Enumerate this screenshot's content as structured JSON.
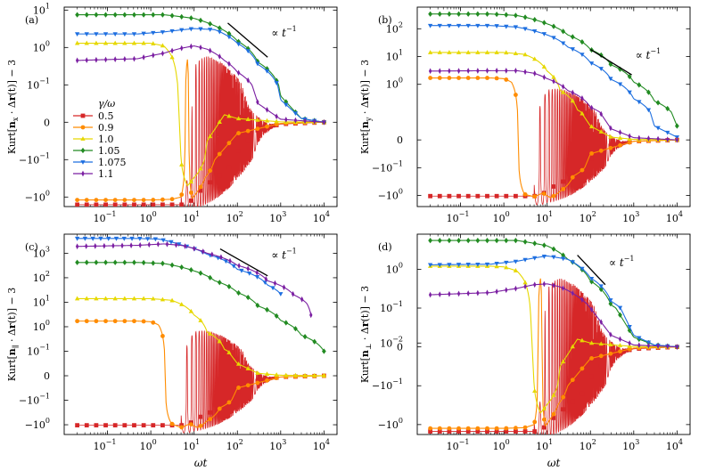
{
  "legend": {
    "title": "γ/ω",
    "entries": [
      {
        "label": "0.5",
        "color": "#d62728",
        "marker": "square"
      },
      {
        "label": "0.9",
        "color": "#ff8c00",
        "marker": "circle"
      },
      {
        "label": "1.0",
        "color": "#e6d800",
        "marker": "triangle-up"
      },
      {
        "label": "1.05",
        "color": "#228b22",
        "marker": "diamond"
      },
      {
        "label": "1.075",
        "color": "#1e6fe0",
        "marker": "triangle-down"
      },
      {
        "label": "1.1",
        "color": "#7b1fa2",
        "marker": "thin-diamond"
      }
    ]
  },
  "chart_data": [
    {
      "panel": "(a)",
      "type": "line",
      "xlabel": "",
      "ylabel": "Kurt[n_x · Δr(t)] − 3",
      "ylabel_parts": [
        "Kurt[",
        "n",
        "x",
        " · Δ",
        "r",
        "(t)] − 3"
      ],
      "xscale": "log",
      "yscale": "symlog",
      "xlim": [
        0.01,
        20000
      ],
      "ylim": [
        -1.8,
        12
      ],
      "xticks": [
        {
          "v": 0.1,
          "b": "10",
          "e": "−1"
        },
        {
          "v": 1,
          "b": "10",
          "e": "0"
        },
        {
          "v": 10,
          "b": "10",
          "e": "1"
        },
        {
          "v": 100,
          "b": "10",
          "e": "2"
        },
        {
          "v": 1000,
          "b": "10",
          "e": "3"
        },
        {
          "v": 10000,
          "b": "10",
          "e": "4"
        }
      ],
      "yticks": [
        {
          "v": 10,
          "b": "10",
          "e": "1"
        },
        {
          "v": 1,
          "b": "10",
          "e": "0"
        },
        {
          "v": 0.1,
          "b": "10",
          "e": "−1"
        },
        {
          "v": 0,
          "b": "0",
          "e": ""
        },
        {
          "v": -0.1,
          "b": "−10",
          "e": "−1"
        },
        {
          "v": -1,
          "b": "−10",
          "e": "0"
        }
      ],
      "annotation": {
        "text": "∝ t",
        "exp": "−1",
        "line_x": [
          60,
          500
        ],
        "line_y": [
          4.5,
          0.55
        ]
      },
      "series": [
        {
          "name": "0.5",
          "osc": true,
          "x": [
            0.02,
            1,
            4,
            6,
            8,
            10,
            20,
            40,
            100,
            300,
            1000,
            10000
          ],
          "y": [
            -1.6,
            -1.6,
            -1.6,
            -1.6,
            -1.4,
            -0.9,
            -0.45,
            -0.25,
            -0.08,
            -0.02,
            -0.005,
            0
          ]
        },
        {
          "name": "0.9",
          "x": [
            0.02,
            1,
            3,
            5,
            7,
            9,
            12,
            18,
            30,
            100,
            1000,
            10000
          ],
          "y": [
            -1.2,
            -1.2,
            -1.15,
            -1.0,
            0.5,
            -1.1,
            -0.7,
            -0.3,
            -0.1,
            -0.03,
            -0.003,
            0
          ]
        },
        {
          "name": "1.0",
          "x": [
            0.02,
            0.5,
            1,
            2,
            3,
            4,
            5,
            7,
            10,
            20,
            50,
            100,
            1000,
            10000
          ],
          "y": [
            1.3,
            1.3,
            1.3,
            1.1,
            0.6,
            0.15,
            -0.1,
            -0.5,
            -0.3,
            -0.05,
            0.02,
            0.01,
            0.001,
            0
          ]
        },
        {
          "name": "1.05",
          "x": [
            0.02,
            0.5,
            2,
            10,
            30,
            100,
            300,
            1000,
            3000,
            10000
          ],
          "y": [
            7.5,
            7.5,
            7.5,
            6.0,
            3.8,
            1.5,
            0.4,
            0.07,
            0.01,
            0
          ]
        },
        {
          "name": "1.075",
          "x": [
            0.02,
            0.5,
            2,
            10,
            30,
            100,
            300,
            1000,
            3000,
            10000
          ],
          "y": [
            2.3,
            2.3,
            2.6,
            3.2,
            3.0,
            1.3,
            0.35,
            0.06,
            0.01,
            0
          ]
        },
        {
          "name": "1.1",
          "x": [
            0.02,
            0.5,
            2,
            5,
            10,
            20,
            50,
            100,
            300,
            1000,
            10000
          ],
          "y": [
            0.45,
            0.5,
            0.7,
            0.95,
            1.1,
            0.9,
            0.45,
            0.22,
            0.05,
            0.008,
            0
          ]
        }
      ]
    },
    {
      "panel": "(b)",
      "type": "line",
      "xlabel": "",
      "ylabel": "Kurt[n_y · Δr(t)] − 3",
      "ylabel_parts": [
        "Kurt[",
        "n",
        "y",
        " · Δ",
        "r",
        "(t)] − 3"
      ],
      "xscale": "log",
      "yscale": "symlog",
      "xlim": [
        0.01,
        20000
      ],
      "ylim": [
        -2.5,
        600
      ],
      "xticks": [
        {
          "v": 0.1,
          "b": "10",
          "e": "−1"
        },
        {
          "v": 1,
          "b": "10",
          "e": "0"
        },
        {
          "v": 10,
          "b": "10",
          "e": "1"
        },
        {
          "v": 100,
          "b": "10",
          "e": "2"
        },
        {
          "v": 1000,
          "b": "10",
          "e": "3"
        },
        {
          "v": 10000,
          "b": "10",
          "e": "4"
        }
      ],
      "yticks": [
        {
          "v": 100,
          "b": "10",
          "e": "2"
        },
        {
          "v": 10,
          "b": "10",
          "e": "1"
        },
        {
          "v": 1,
          "b": "10",
          "e": "0"
        },
        {
          "v": 0,
          "b": "0",
          "e": ""
        },
        {
          "v": -0.1,
          "b": "−10",
          "e": "−1"
        },
        {
          "v": -1,
          "b": "−10",
          "e": "0"
        }
      ],
      "annotation": {
        "text": "∝ t",
        "exp": "−1",
        "line_x": [
          100,
          900
        ],
        "line_y": [
          18,
          2.2
        ]
      },
      "series": [
        {
          "name": "0.5",
          "osc": true,
          "x": [
            0.02,
            1,
            4,
            6,
            8,
            10,
            20,
            40,
            100,
            300,
            1000,
            10000
          ],
          "y": [
            -1.05,
            -1.05,
            -1.05,
            -1.05,
            -0.9,
            -0.6,
            -0.35,
            -0.2,
            -0.07,
            -0.02,
            -0.005,
            0
          ]
        },
        {
          "name": "0.9",
          "x": [
            0.02,
            0.5,
            1,
            1.5,
            2,
            3,
            5,
            8,
            12,
            20,
            40,
            100,
            1000,
            10000
          ],
          "y": [
            1.7,
            1.7,
            1.6,
            1.2,
            0.2,
            -0.9,
            -1.1,
            -0.8,
            -1.2,
            -0.7,
            -0.2,
            -0.05,
            -0.005,
            0
          ]
        },
        {
          "name": "1.0",
          "x": [
            0.02,
            1,
            3,
            6,
            10,
            20,
            50,
            100,
            300,
            1000,
            10000
          ],
          "y": [
            14,
            14,
            12,
            7,
            3,
            0.6,
            0.12,
            0.05,
            0.01,
            0.002,
            0
          ]
        },
        {
          "name": "1.05",
          "x": [
            0.02,
            0.5,
            2,
            10,
            30,
            100,
            300,
            1000,
            3000,
            10000
          ],
          "y": [
            340,
            340,
            300,
            150,
            60,
            18,
            5,
            1.2,
            0.25,
            0.05
          ]
        },
        {
          "name": "1.075",
          "x": [
            0.02,
            0.5,
            2,
            10,
            30,
            100,
            300,
            1000,
            3000,
            10000
          ],
          "y": [
            130,
            130,
            115,
            60,
            22,
            6,
            1.5,
            0.3,
            0.05,
            0.01
          ]
        },
        {
          "name": "1.1",
          "x": [
            0.02,
            0.5,
            2,
            5,
            10,
            30,
            100,
            300,
            1000,
            10000
          ],
          "y": [
            3,
            3.1,
            3.1,
            2.5,
            1.6,
            0.6,
            0.15,
            0.04,
            0.008,
            0
          ]
        }
      ]
    },
    {
      "panel": "(c)",
      "type": "line",
      "xlabel": "ωt",
      "ylabel": "Kurt[n_∥ · Δr(t)] − 3",
      "ylabel_parts": [
        "Kurt[",
        "n",
        "∥",
        " · Δ",
        "r",
        "(t)] − 3"
      ],
      "xscale": "log",
      "yscale": "symlog",
      "xlim": [
        0.01,
        20000
      ],
      "ylim": [
        -2.5,
        6000
      ],
      "xticks": [
        {
          "v": 0.1,
          "b": "10",
          "e": "−1"
        },
        {
          "v": 1,
          "b": "10",
          "e": "0"
        },
        {
          "v": 10,
          "b": "10",
          "e": "1"
        },
        {
          "v": 100,
          "b": "10",
          "e": "2"
        },
        {
          "v": 1000,
          "b": "10",
          "e": "3"
        },
        {
          "v": 10000,
          "b": "10",
          "e": "4"
        }
      ],
      "yticks": [
        {
          "v": 1000,
          "b": "10",
          "e": "3"
        },
        {
          "v": 100,
          "b": "10",
          "e": "2"
        },
        {
          "v": 10,
          "b": "10",
          "e": "1"
        },
        {
          "v": 1,
          "b": "10",
          "e": "0"
        },
        {
          "v": 0.1,
          "b": "10",
          "e": "−1"
        },
        {
          "v": 0,
          "b": "0",
          "e": ""
        },
        {
          "v": -0.1,
          "b": "−10",
          "e": "−1"
        },
        {
          "v": -1,
          "b": "−10",
          "e": "0"
        }
      ],
      "annotation": {
        "text": "∝ t",
        "exp": "−1",
        "line_x": [
          40,
          500
        ],
        "line_y": [
          1500,
          120
        ]
      },
      "series": [
        {
          "name": "0.5",
          "osc": true,
          "x": [
            0.02,
            1,
            4,
            6,
            8,
            10,
            20,
            40,
            100,
            300,
            1000,
            10000
          ],
          "y": [
            -1.05,
            -1.05,
            -1.05,
            -1.05,
            -0.9,
            -0.6,
            -0.35,
            -0.2,
            -0.07,
            -0.02,
            -0.005,
            0
          ]
        },
        {
          "name": "0.9",
          "x": [
            0.02,
            0.5,
            1,
            1.5,
            2,
            3,
            5,
            8,
            12,
            20,
            40,
            100,
            1000,
            10000
          ],
          "y": [
            1.7,
            1.7,
            1.6,
            1.2,
            0.2,
            -0.9,
            -1.3,
            -0.9,
            -1.3,
            -0.7,
            -0.2,
            -0.05,
            -0.005,
            0
          ]
        },
        {
          "name": "1.0",
          "x": [
            0.02,
            1,
            3,
            6,
            10,
            20,
            50,
            100,
            300,
            1000,
            10000
          ],
          "y": [
            14,
            14,
            12,
            7,
            3,
            0.6,
            0.12,
            0.05,
            0.01,
            0.002,
            0
          ]
        },
        {
          "name": "1.05",
          "x": [
            0.02,
            0.5,
            2,
            10,
            30,
            100,
            300,
            1000,
            3000,
            10000
          ],
          "y": [
            420,
            420,
            380,
            190,
            75,
            25,
            7,
            1.8,
            0.45,
            0.1
          ]
        },
        {
          "name": "1.075",
          "x": [
            0.02,
            0.5,
            1.5,
            5,
            20,
            100,
            500,
            1000
          ],
          "y": [
            4000,
            4000,
            3800,
            2200,
            900,
            220,
            50,
            22
          ]
        },
        {
          "name": "1.1",
          "x": [
            0.02,
            0.5,
            2,
            5,
            20,
            100,
            500,
            2000,
            4000,
            5000
          ],
          "y": [
            1900,
            2100,
            2400,
            2100,
            1000,
            320,
            75,
            20,
            9,
            3
          ]
        }
      ]
    },
    {
      "panel": "(d)",
      "type": "line",
      "xlabel": "ωt",
      "ylabel": "Kurt[n_⊥ · Δr(t)] − 3",
      "ylabel_parts": [
        "Kurt[",
        "n",
        "⊥",
        " · Δ",
        "r",
        "(t)] − 3"
      ],
      "xscale": "log",
      "yscale": "symlog",
      "xlim": [
        0.01,
        20000
      ],
      "ylim": [
        -1.8,
        8
      ],
      "xticks": [
        {
          "v": 0.1,
          "b": "10",
          "e": "−1"
        },
        {
          "v": 1,
          "b": "10",
          "e": "0"
        },
        {
          "v": 10,
          "b": "10",
          "e": "1"
        },
        {
          "v": 100,
          "b": "10",
          "e": "2"
        },
        {
          "v": 1000,
          "b": "10",
          "e": "3"
        },
        {
          "v": 10000,
          "b": "10",
          "e": "4"
        }
      ],
      "yticks": [
        {
          "v": 1,
          "b": "10",
          "e": "0"
        },
        {
          "v": 0.1,
          "b": "10",
          "e": "−1"
        },
        {
          "v": 0.01,
          "b": "10",
          "e": "−2"
        },
        {
          "v": 0,
          "b": "0",
          "e": ""
        },
        {
          "v": -0.1,
          "b": "−10",
          "e": "−1"
        },
        {
          "v": -1,
          "b": "−10",
          "e": "0"
        }
      ],
      "annotation": {
        "text": "∝ t",
        "exp": "−1",
        "line_x": [
          50,
          220
        ],
        "line_y": [
          2.3,
          0.4
        ]
      },
      "series": [
        {
          "name": "0.5",
          "osc": true,
          "x": [
            0.02,
            1,
            4,
            6,
            8,
            10,
            20,
            40,
            100,
            300,
            1000,
            10000
          ],
          "y": [
            -1.5,
            -1.5,
            -1.5,
            -1.5,
            -1.3,
            -0.9,
            -0.45,
            -0.25,
            -0.08,
            -0.02,
            -0.005,
            0
          ]
        },
        {
          "name": "0.9",
          "x": [
            0.02,
            1,
            3,
            5,
            7,
            9,
            12,
            18,
            30,
            100,
            1000,
            10000
          ],
          "y": [
            -1.25,
            -1.25,
            -1.2,
            -1.0,
            0.6,
            -1.1,
            -0.7,
            -0.3,
            -0.1,
            -0.03,
            -0.003,
            0
          ]
        },
        {
          "name": "1.0",
          "x": [
            0.02,
            0.5,
            1,
            2,
            3,
            4,
            5,
            7,
            10,
            20,
            50,
            100,
            1000,
            10000
          ],
          "y": [
            1.2,
            1.2,
            1.15,
            0.9,
            0.5,
            0.12,
            -0.1,
            -0.5,
            -0.3,
            -0.05,
            0.02,
            0.01,
            0.001,
            0
          ]
        },
        {
          "name": "1.05",
          "x": [
            0.02,
            0.5,
            2,
            10,
            30,
            100,
            300,
            1000,
            3000,
            10000
          ],
          "y": [
            5.5,
            5.5,
            5.5,
            4.0,
            1.8,
            0.5,
            0.12,
            0.025,
            0.005,
            0
          ]
        },
        {
          "name": "1.075",
          "x": [
            0.02,
            0.5,
            2,
            10,
            30,
            100,
            300,
            1000,
            3000,
            10000
          ],
          "y": [
            1.3,
            1.35,
            1.6,
            2.2,
            1.8,
            0.6,
            0.15,
            0.03,
            0.005,
            0
          ]
        },
        {
          "name": "1.1",
          "x": [
            0.02,
            0.5,
            2,
            5,
            10,
            20,
            50,
            100,
            300,
            1000,
            10000
          ],
          "y": [
            0.22,
            0.25,
            0.32,
            0.4,
            0.42,
            0.35,
            0.2,
            0.1,
            0.03,
            0.005,
            0
          ]
        }
      ]
    }
  ]
}
